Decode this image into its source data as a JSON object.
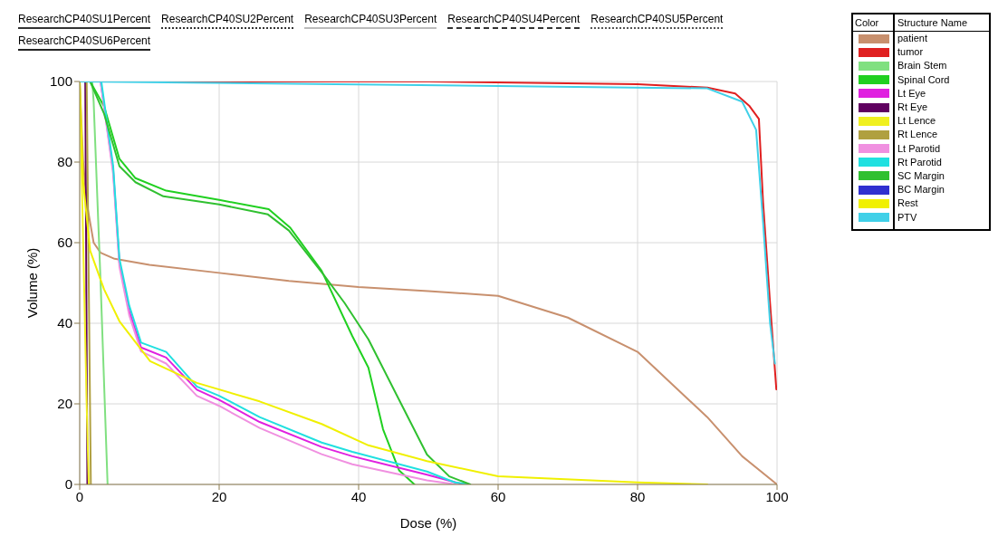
{
  "chart_data": {
    "type": "line",
    "xlabel": "Dose (%)",
    "ylabel": "Volume (%)",
    "xlim": [
      0,
      100
    ],
    "ylim": [
      0,
      100
    ],
    "xticks": [
      0,
      20,
      40,
      60,
      80,
      100
    ],
    "yticks": [
      0,
      20,
      40,
      60,
      80,
      100
    ],
    "grid": true,
    "legend": "top right",
    "legend_title": "Structure Name",
    "marker": "none",
    "line_style": "solid",
    "annotations": [
      "Color",
      "ResearchCP40SU1Percent",
      "ResearchCP40SU2Percent",
      "ResearchCP40SU3Percent",
      "ResearchCP40SU4Percent",
      "ResearchCP40SU5Percent",
      "ResearchCP40SU6Percent"
    ],
    "series": [
      {
        "name": "patient",
        "color": "#c8906e",
        "x": [
          0,
          0.5,
          1,
          2,
          3,
          5,
          10,
          20,
          30,
          40,
          50,
          60,
          70,
          80,
          90,
          95,
          100
        ],
        "values": [
          100,
          80,
          70,
          60,
          57.5,
          56,
          54.5,
          52.5,
          50.5,
          49,
          48,
          46.8,
          41.4,
          32.9,
          16.7,
          7,
          0
        ]
      },
      {
        "name": "tumor",
        "color": "#e02020",
        "x": [
          0,
          50,
          80,
          90,
          94,
          96,
          97.4,
          98,
          99,
          99.9
        ],
        "values": [
          100,
          100,
          99.3,
          98.5,
          97,
          94,
          90.7,
          70,
          45,
          23.6
        ]
      },
      {
        "name": "Brain Stem",
        "color": "#80e080",
        "x": [
          0,
          1.8,
          2,
          3,
          4
        ],
        "values": [
          100,
          100,
          95,
          50,
          0
        ]
      },
      {
        "name": "Spinal Cord",
        "color": "#20d020",
        "x": [
          0,
          1.5,
          3.5,
          5.7,
          8,
          12.4,
          20,
          27.1,
          30.2,
          34.7,
          39.1,
          41.4,
          43.5,
          45.8,
          48
        ],
        "values": [
          100,
          100,
          93.8,
          80.8,
          76,
          72.9,
          70.6,
          68.3,
          63.7,
          53,
          36.8,
          29,
          13.7,
          3.5,
          0
        ]
      },
      {
        "name": "Lt Eye",
        "color": "#e020e0",
        "x": [
          0,
          3,
          4.8,
          5.7,
          7.1,
          8.8,
          12.4,
          16.8,
          20,
          25.8,
          34.7,
          39.1,
          49.8,
          55
        ],
        "values": [
          100,
          100,
          78,
          55,
          43,
          34,
          31.5,
          23.5,
          21,
          15.5,
          9.3,
          7,
          2.4,
          0
        ]
      },
      {
        "name": "Rt Eye",
        "color": "#600060",
        "x": [
          0,
          0.8,
          1.1
        ],
        "values": [
          100,
          100,
          0
        ]
      },
      {
        "name": "Lt Lence",
        "color": "#f0f020",
        "x": [
          0,
          0.5,
          1,
          1.3
        ],
        "values": [
          100,
          60,
          20,
          0
        ]
      },
      {
        "name": "Rt Lence",
        "color": "#b0a040",
        "x": [
          0,
          1,
          1.3,
          1.6
        ],
        "values": [
          100,
          100,
          50,
          0
        ]
      },
      {
        "name": "Lt Parotid",
        "color": "#f090e0",
        "x": [
          0,
          3,
          4.8,
          5.7,
          7.1,
          8.8,
          12.4,
          16.8,
          20,
          25.8,
          34.7,
          39.1,
          49.8,
          54
        ],
        "values": [
          100,
          100,
          77,
          54,
          42,
          33,
          30,
          22,
          19.5,
          14,
          7.5,
          5,
          1,
          0
        ]
      },
      {
        "name": "Rt Parotid",
        "color": "#20e0e0",
        "x": [
          0,
          3.1,
          4.8,
          5.7,
          7.1,
          8.8,
          12.4,
          16.8,
          20,
          25.8,
          34.7,
          39.1,
          49.8,
          53.8,
          56
        ],
        "values": [
          100,
          100,
          79,
          56,
          44.4,
          35.2,
          32.9,
          24.3,
          22,
          16.7,
          10.4,
          8.1,
          3.2,
          0.5,
          0
        ]
      },
      {
        "name": "SC Margin",
        "color": "#30c030",
        "x": [
          0,
          1.5,
          3.5,
          5.7,
          8,
          12,
          20,
          27,
          30,
          35,
          38,
          41.4,
          45.8,
          49.8,
          53,
          56
        ],
        "values": [
          100,
          100,
          92,
          79,
          75,
          71.5,
          69.5,
          67,
          63,
          52,
          45,
          36,
          21,
          7.4,
          2,
          0
        ]
      },
      {
        "name": "BC Margin",
        "color": "#3030d0"
      },
      {
        "name": "Rest",
        "color": "#f0f000",
        "x": [
          0,
          0.5,
          1.5,
          3.5,
          5.7,
          10.1,
          16.8,
          25.8,
          34.7,
          41.4,
          49.8,
          60,
          80,
          90
        ],
        "values": [
          100,
          75,
          58,
          48.4,
          40.5,
          30.6,
          25.2,
          20.6,
          15,
          9.7,
          5.8,
          2,
          0.5,
          0
        ]
      },
      {
        "name": "PTV",
        "color": "#40d0e8",
        "x": [
          0,
          90,
          95,
          97,
          98,
          99,
          99.7
        ],
        "values": [
          100,
          98.3,
          95,
          88,
          65,
          40,
          30
        ]
      }
    ]
  }
}
